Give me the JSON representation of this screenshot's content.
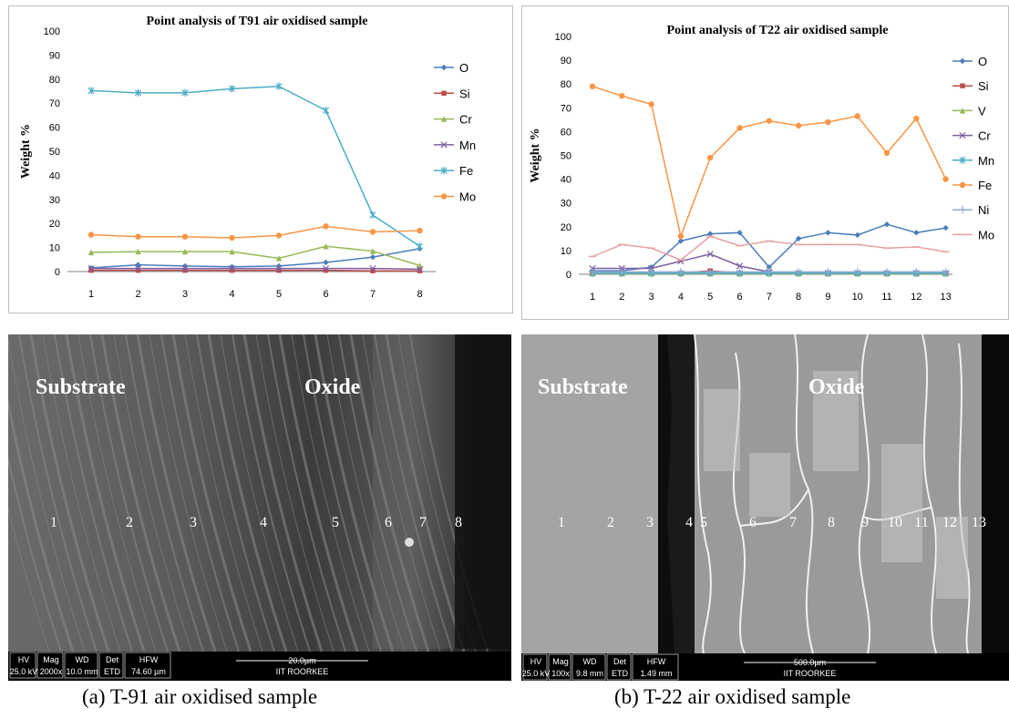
{
  "chart_data": [
    {
      "type": "line",
      "title": "Point analysis of T91 air oxidised sample",
      "xlabel": "",
      "ylabel": "Weight %",
      "ylim": [
        0,
        100
      ],
      "yticks": [
        "0",
        "10",
        "20",
        "30",
        "40",
        "50",
        "60",
        "70",
        "80",
        "90",
        "100"
      ],
      "categories": [
        "1",
        "2",
        "3",
        "4",
        "5",
        "6",
        "7",
        "8"
      ],
      "legend_position": "right",
      "series": [
        {
          "name": "O",
          "color": "#4a7ebb",
          "marker": "diamond",
          "values": [
            1.5,
            2.8,
            2.3,
            2.0,
            2.3,
            3.8,
            6.0,
            9.5
          ]
        },
        {
          "name": "Si",
          "color": "#be4b48",
          "marker": "square",
          "values": [
            0.5,
            0.5,
            0.5,
            0.5,
            0.5,
            0.5,
            0.3,
            0.3
          ]
        },
        {
          "name": "Cr",
          "color": "#98b954",
          "marker": "triangle",
          "values": [
            8.0,
            8.3,
            8.3,
            8.3,
            5.5,
            10.5,
            8.5,
            2.5
          ]
        },
        {
          "name": "Mn",
          "color": "#7d60a0",
          "marker": "x",
          "values": [
            1.3,
            1.3,
            1.3,
            1.3,
            1.3,
            1.3,
            1.3,
            1.0
          ]
        },
        {
          "name": "Fe",
          "color": "#4bacc6",
          "marker": "star",
          "values": [
            75.2,
            74.3,
            74.3,
            76.0,
            77.0,
            67.0,
            23.5,
            10.5
          ]
        },
        {
          "name": "Mo",
          "color": "#f79646",
          "marker": "circle",
          "values": [
            15.3,
            14.5,
            14.5,
            14.0,
            15.0,
            18.8,
            16.5,
            17.0
          ]
        }
      ]
    },
    {
      "type": "line",
      "title": "Point analysis of T22 air oxidised sample",
      "xlabel": "",
      "ylabel": "Weight %",
      "ylim": [
        0,
        100
      ],
      "yticks": [
        "0",
        "10",
        "20",
        "30",
        "40",
        "50",
        "60",
        "70",
        "80",
        "90",
        "100"
      ],
      "categories": [
        "1",
        "2",
        "3",
        "4",
        "5",
        "6",
        "7",
        "8",
        "9",
        "10",
        "11",
        "12",
        "13"
      ],
      "legend_position": "right",
      "series": [
        {
          "name": "O",
          "color": "#4a7ebb",
          "marker": "diamond",
          "values": [
            1.5,
            1.5,
            3.0,
            14.0,
            17.0,
            17.5,
            3.0,
            15.0,
            17.5,
            16.5,
            21.0,
            17.5,
            19.5
          ]
        },
        {
          "name": "Si",
          "color": "#be4b48",
          "marker": "square",
          "values": [
            0.5,
            0.5,
            0.5,
            0.5,
            1.5,
            0.5,
            0.5,
            0.5,
            0.5,
            0.5,
            0.5,
            0.5,
            0.5
          ]
        },
        {
          "name": "V",
          "color": "#98b954",
          "marker": "triangle",
          "values": [
            0.3,
            0.3,
            0.3,
            0.3,
            0.3,
            0.3,
            0.3,
            0.3,
            0.3,
            0.3,
            0.3,
            0.3,
            0.3
          ]
        },
        {
          "name": "Cr",
          "color": "#7d60a0",
          "marker": "x",
          "values": [
            2.5,
            2.5,
            2.5,
            5.5,
            8.5,
            3.5,
            1.0,
            0.5,
            0.5,
            0.5,
            0.5,
            0.5,
            0.5
          ]
        },
        {
          "name": "Mn",
          "color": "#4bacc6",
          "marker": "star",
          "values": [
            0.5,
            0.5,
            0.5,
            0.5,
            0.5,
            0.5,
            0.5,
            0.5,
            0.5,
            0.5,
            0.5,
            0.5,
            0.5
          ]
        },
        {
          "name": "Fe",
          "color": "#f79646",
          "marker": "circle",
          "values": [
            79.0,
            75.0,
            71.5,
            16.0,
            49.0,
            61.5,
            64.5,
            62.5,
            64.0,
            66.5,
            51.0,
            65.5,
            40.0
          ]
        },
        {
          "name": "Ni",
          "color": "#8fa9d6",
          "marker": "plus",
          "values": [
            1.0,
            1.0,
            1.0,
            1.0,
            1.0,
            1.0,
            1.0,
            1.0,
            1.0,
            1.0,
            1.0,
            1.0,
            1.0
          ]
        },
        {
          "name": "Mo",
          "color": "#e6a3a1",
          "marker": "dash",
          "values": [
            7.5,
            12.5,
            11.0,
            6.0,
            16.0,
            12.0,
            14.0,
            12.5,
            12.5,
            12.5,
            11.0,
            11.5,
            9.5
          ]
        }
      ]
    }
  ],
  "micrographs": [
    {
      "left_label": "Substrate",
      "right_label": "Oxide",
      "points": [
        "1",
        "2",
        "3",
        "4",
        "5",
        "6",
        "7",
        "8"
      ],
      "databar": {
        "hv": "HV",
        "hv_val": "25.0 kV",
        "mag": "Mag",
        "mag_val": "2000x",
        "wd": "WD",
        "wd_val": "10.0 mm",
        "det": "Det",
        "det_val": "ETD",
        "hfw": "HFW",
        "hfw_val": "74.60 µm",
        "scale": "20.0µm",
        "org": "IIT ROORKEE"
      }
    },
    {
      "left_label": "Substrate",
      "right_label": "Oxide",
      "points": [
        "1",
        "2",
        "3",
        "4",
        "5",
        "6",
        "7",
        "8",
        "9",
        "10",
        "11",
        "12",
        "13"
      ],
      "databar": {
        "hv": "HV",
        "hv_val": "25.0 kV",
        "mag": "Mag",
        "mag_val": "100x",
        "wd": "WD",
        "wd_val": "9.8 mm",
        "det": "Det",
        "det_val": "ETD",
        "hfw": "HFW",
        "hfw_val": "1.49 mm",
        "scale": "500.0µm",
        "org": "IIT ROORKEE"
      }
    }
  ],
  "captions": [
    "(a) T-91 air oxidised sample",
    "(b) T-22 air oxidised sample"
  ]
}
